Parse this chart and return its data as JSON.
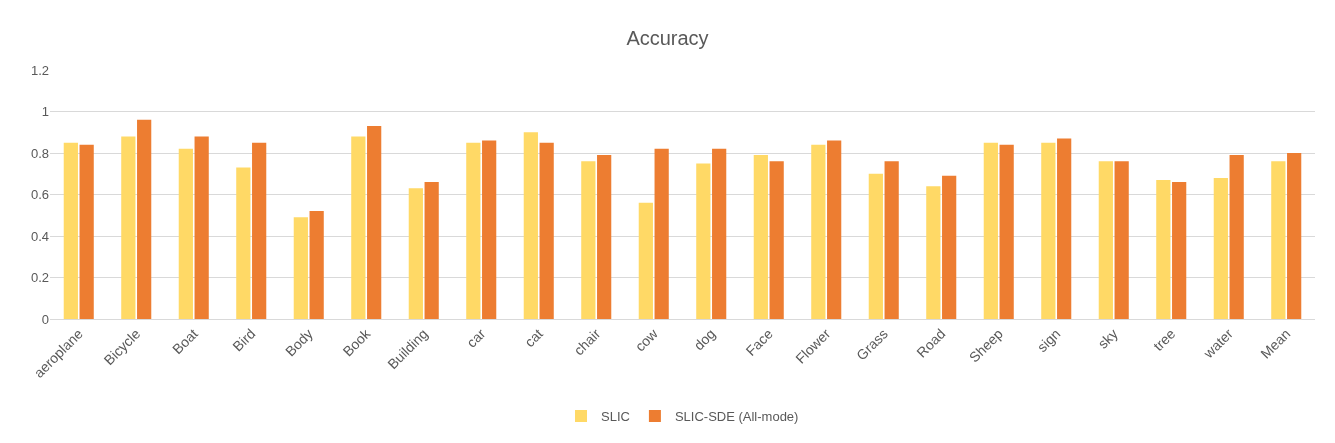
{
  "chart_data": {
    "type": "bar",
    "title": "Accuracy",
    "categories": [
      "aeroplane",
      "Bicycle",
      "Boat",
      "Bird",
      "Body",
      "Book",
      "Building",
      "car",
      "cat",
      "chair",
      "cow",
      "dog",
      "Face",
      "Flower",
      "Grass",
      "Road",
      "Sheep",
      "sign",
      "sky",
      "tree",
      "water",
      "Mean"
    ],
    "series": [
      {
        "name": "SLIC",
        "color": "#ffd966",
        "values": [
          0.85,
          0.88,
          0.82,
          0.73,
          0.49,
          0.88,
          0.63,
          0.85,
          0.9,
          0.76,
          0.56,
          0.75,
          0.79,
          0.84,
          0.7,
          0.64,
          0.85,
          0.85,
          0.76,
          0.67,
          0.68,
          0.76
        ]
      },
      {
        "name": "SLIC-SDE (All-mode)",
        "color": "#ed7d31",
        "values": [
          0.84,
          0.96,
          0.88,
          0.85,
          0.52,
          0.93,
          0.66,
          0.86,
          0.85,
          0.79,
          0.82,
          0.82,
          0.76,
          0.86,
          0.76,
          0.69,
          0.84,
          0.87,
          0.76,
          0.66,
          0.79,
          0.8
        ]
      }
    ],
    "ylim": [
      0,
      1.2
    ],
    "yticks": [
      0,
      0.2,
      0.4,
      0.6,
      0.8,
      1,
      1.2
    ],
    "grid": "y",
    "legend": "bottom"
  }
}
